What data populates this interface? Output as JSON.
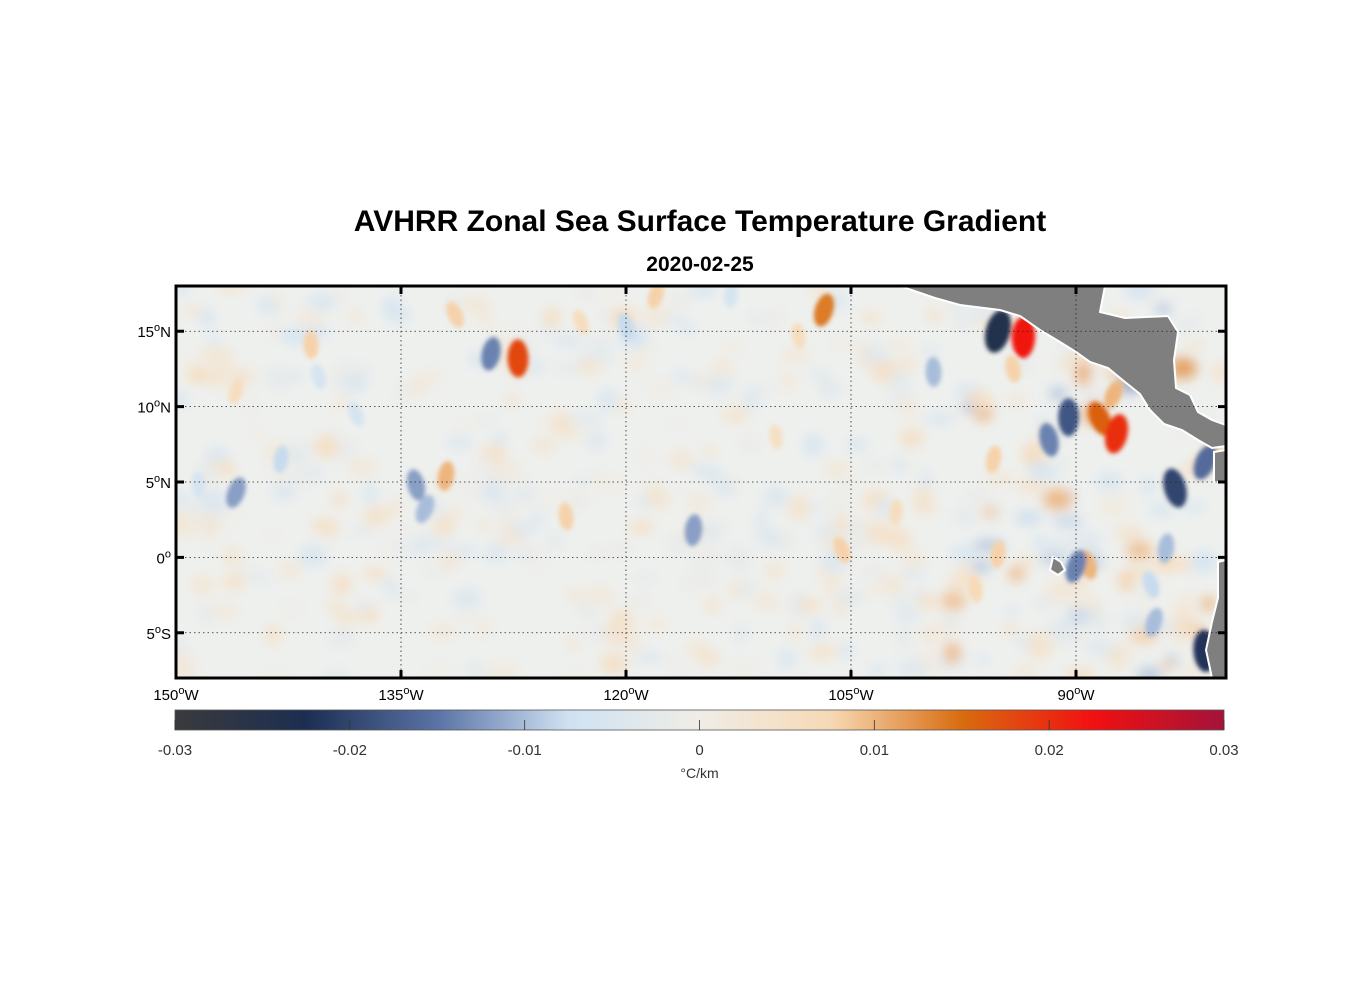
{
  "title": "AVHRR Zonal Sea Surface Temperature Gradient",
  "subtitle": "2020-02-25",
  "map": {
    "lon_range": [
      -150,
      -80
    ],
    "lat_range": [
      -8,
      18
    ],
    "lon_ticks": [
      {
        "value": -150,
        "num": "150",
        "hemi": "W"
      },
      {
        "value": -135,
        "num": "135",
        "hemi": "W"
      },
      {
        "value": -120,
        "num": "120",
        "hemi": "W"
      },
      {
        "value": -105,
        "num": "105",
        "hemi": "W"
      },
      {
        "value": -90,
        "num": "90",
        "hemi": "W"
      }
    ],
    "lat_ticks": [
      {
        "value": 15,
        "num": "15",
        "hemi": "N"
      },
      {
        "value": 10,
        "num": "10",
        "hemi": "N"
      },
      {
        "value": 5,
        "num": "5",
        "hemi": "N"
      },
      {
        "value": 0,
        "num": "0",
        "hemi": ""
      },
      {
        "value": -5,
        "num": "5",
        "hemi": "S"
      }
    ],
    "land_color": "#7f7f7f",
    "grid": "dotted",
    "features": [
      {
        "lon": -131.4,
        "lat": 16.1,
        "v": 0.008
      },
      {
        "lon": -129.0,
        "lat": 13.5,
        "v": -0.014
      },
      {
        "lon": -127.2,
        "lat": 13.2,
        "v": 0.018
      },
      {
        "lon": -134.0,
        "lat": 4.8,
        "v": -0.012
      },
      {
        "lon": -133.4,
        "lat": 3.2,
        "v": -0.01
      },
      {
        "lon": -132.0,
        "lat": 5.4,
        "v": 0.01
      },
      {
        "lon": -141.0,
        "lat": 14.1,
        "v": 0.008
      },
      {
        "lon": -140.5,
        "lat": 12.0,
        "v": -0.006
      },
      {
        "lon": -146.0,
        "lat": 4.3,
        "v": -0.012
      },
      {
        "lon": -143.0,
        "lat": 6.5,
        "v": -0.008
      },
      {
        "lon": -148.5,
        "lat": 4.8,
        "v": -0.006
      },
      {
        "lon": -120.0,
        "lat": 15.3,
        "v": -0.008
      },
      {
        "lon": -118.0,
        "lat": 17.4,
        "v": 0.008
      },
      {
        "lon": -115.5,
        "lat": 1.8,
        "v": -0.012
      },
      {
        "lon": -124.0,
        "lat": 2.7,
        "v": 0.008
      },
      {
        "lon": -123.0,
        "lat": 15.6,
        "v": 0.006
      },
      {
        "lon": -106.8,
        "lat": 16.4,
        "v": 0.014
      },
      {
        "lon": -113.0,
        "lat": 17.4,
        "v": -0.006
      },
      {
        "lon": -108.5,
        "lat": 14.7,
        "v": 0.006
      },
      {
        "lon": -105.6,
        "lat": 0.5,
        "v": 0.008
      },
      {
        "lon": -95.2,
        "lat": 15.0,
        "v": -0.024
      },
      {
        "lon": -93.5,
        "lat": 14.6,
        "v": 0.022
      },
      {
        "lon": -94.2,
        "lat": 12.5,
        "v": 0.008
      },
      {
        "lon": -88.4,
        "lat": 9.2,
        "v": 0.016
      },
      {
        "lon": -87.3,
        "lat": 8.2,
        "v": 0.02
      },
      {
        "lon": -90.5,
        "lat": 9.3,
        "v": -0.018
      },
      {
        "lon": -91.8,
        "lat": 7.8,
        "v": -0.014
      },
      {
        "lon": -87.5,
        "lat": 10.8,
        "v": 0.01
      },
      {
        "lon": -95.5,
        "lat": 6.5,
        "v": 0.008
      },
      {
        "lon": -99.5,
        "lat": 12.3,
        "v": -0.01
      },
      {
        "lon": -83.4,
        "lat": 4.6,
        "v": -0.02
      },
      {
        "lon": -81.4,
        "lat": 6.3,
        "v": -0.016
      },
      {
        "lon": -84.0,
        "lat": 0.6,
        "v": -0.01
      },
      {
        "lon": -81.4,
        "lat": -6.2,
        "v": -0.022
      },
      {
        "lon": -89.2,
        "lat": -0.5,
        "v": 0.01
      },
      {
        "lon": -90.0,
        "lat": -0.6,
        "v": -0.014
      },
      {
        "lon": -95.2,
        "lat": 0.2,
        "v": 0.008
      },
      {
        "lon": -96.7,
        "lat": -2.1,
        "v": 0.007
      },
      {
        "lon": -85.0,
        "lat": -1.8,
        "v": -0.008
      },
      {
        "lon": -84.8,
        "lat": -4.3,
        "v": -0.01
      },
      {
        "lon": -102.0,
        "lat": 3.0,
        "v": 0.006
      },
      {
        "lon": -110.0,
        "lat": 8.0,
        "v": 0.005
      },
      {
        "lon": -138.0,
        "lat": 9.5,
        "v": -0.006
      },
      {
        "lon": -146.0,
        "lat": 11.0,
        "v": 0.006
      }
    ]
  },
  "colorbar": {
    "range": [
      -0.03,
      0.03
    ],
    "ticks": [
      "-0.03",
      "-0.02",
      "-0.01",
      "0",
      "0.01",
      "0.02",
      "0.03"
    ],
    "unit_label": "°C/km",
    "stops": [
      "#3a3a3c",
      "#1c2e52",
      "#5a73a6",
      "#cfe2f3",
      "#f0ede6",
      "#f7d9b5",
      "#d86c10",
      "#f21010",
      "#a4133a"
    ]
  }
}
